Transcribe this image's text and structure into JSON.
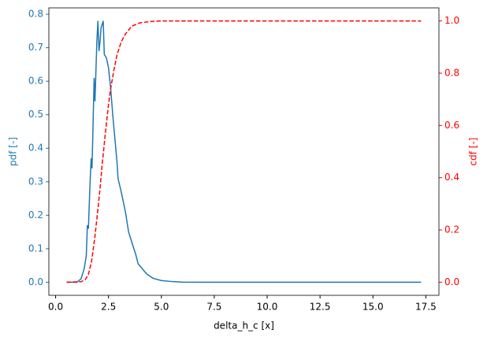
{
  "chart_data": {
    "type": "line",
    "xlabel": "delta_h_c [x]",
    "ylabel": "pdf [-]",
    "y2label": "cdf [-]",
    "xlim": [
      -0.32,
      18.12
    ],
    "ylim": [
      -0.039,
      0.819
    ],
    "y2lim": [
      -0.05,
      1.05
    ],
    "xticks": [
      {
        "value": 0,
        "label": "0.0"
      },
      2.5,
      {
        "value": 5,
        "label": "5.0"
      },
      7.5,
      {
        "value": 10,
        "label": "10.0"
      },
      12.5,
      {
        "value": 15,
        "label": "15.0"
      },
      17.5
    ],
    "yticks": [
      {
        "value": 0,
        "label": "0.0"
      },
      0.1,
      0.2,
      0.3,
      0.4,
      0.5,
      0.6,
      0.7,
      0.8
    ],
    "y2ticks": [
      {
        "value": 0,
        "label": "0.0"
      },
      0.2,
      0.4,
      0.6,
      0.8,
      {
        "value": 1,
        "label": "1.0"
      }
    ],
    "ylabel_color": "#1f77b4",
    "y2label_color": "#ff0000",
    "series": [
      {
        "color": "#1f77b4",
        "dash": false,
        "x": [
          0.52,
          1.0,
          1.2,
          1.35,
          1.45,
          1.5,
          1.55,
          1.6,
          1.65,
          1.68,
          1.72,
          1.78,
          1.82,
          1.86,
          1.9,
          1.95,
          2.0,
          2.05,
          2.1,
          2.15,
          2.25,
          2.3,
          2.4,
          2.5,
          2.6,
          2.7,
          2.8,
          2.9,
          2.95,
          3.1,
          3.3,
          3.45,
          3.5,
          3.7,
          3.8,
          3.9,
          4.1,
          4.3,
          4.6,
          5.0,
          5.5,
          6.0,
          7.0,
          10.0,
          17.28
        ],
        "values": [
          0,
          0,
          0.01,
          0.04,
          0.08,
          0.17,
          0.16,
          0.25,
          0.33,
          0.37,
          0.34,
          0.5,
          0.61,
          0.54,
          0.62,
          0.72,
          0.78,
          0.69,
          0.72,
          0.76,
          0.78,
          0.68,
          0.67,
          0.64,
          0.58,
          0.5,
          0.43,
          0.36,
          0.31,
          0.27,
          0.21,
          0.15,
          0.14,
          0.1,
          0.08,
          0.055,
          0.04,
          0.025,
          0.012,
          0.005,
          0.002,
          0.0005,
          0,
          0,
          0
        ]
      },
      {
        "color": "#ff0000",
        "dash": true,
        "axis": "y2",
        "x": [
          0.52,
          1.2,
          1.4,
          1.55,
          1.7,
          1.85,
          2.0,
          2.1,
          2.2,
          2.35,
          2.5,
          2.6,
          2.75,
          2.9,
          3.1,
          3.3,
          3.6,
          4.0,
          4.5,
          5.0,
          17.28
        ],
        "values": [
          0,
          0.002,
          0.01,
          0.03,
          0.08,
          0.17,
          0.28,
          0.36,
          0.45,
          0.57,
          0.68,
          0.74,
          0.81,
          0.87,
          0.92,
          0.95,
          0.98,
          0.993,
          0.998,
          1,
          1
        ]
      }
    ]
  }
}
